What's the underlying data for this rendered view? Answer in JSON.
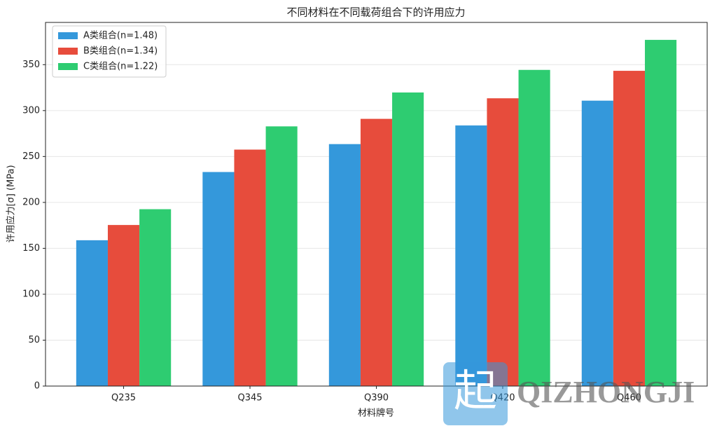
{
  "chart_data": {
    "type": "bar",
    "title": "不同材料在不同载荷组合下的许用应力",
    "xlabel": "材料牌号",
    "ylabel": "许用应力[σ] (MPa)",
    "categories": [
      "Q235",
      "Q345",
      "Q390",
      "Q420",
      "Q460"
    ],
    "series": [
      {
        "name": "A类组合(n=1.48)",
        "color": "#3498db",
        "values": [
          158.8,
          233.1,
          263.5,
          283.8,
          310.8
        ]
      },
      {
        "name": "B类组合(n=1.34)",
        "color": "#e74c3c",
        "values": [
          175.4,
          257.5,
          291.0,
          313.4,
          343.3
        ]
      },
      {
        "name": "C类组合(n=1.22)",
        "color": "#2ecc71",
        "values": [
          192.6,
          282.8,
          319.7,
          344.3,
          377.0
        ]
      }
    ],
    "ylim": [
      0,
      396
    ],
    "yticks": [
      0,
      50,
      100,
      150,
      200,
      250,
      300,
      350
    ],
    "grid": true,
    "legend": "upper left"
  },
  "watermark": {
    "icon": "起",
    "text": "QIZHONGJI"
  }
}
